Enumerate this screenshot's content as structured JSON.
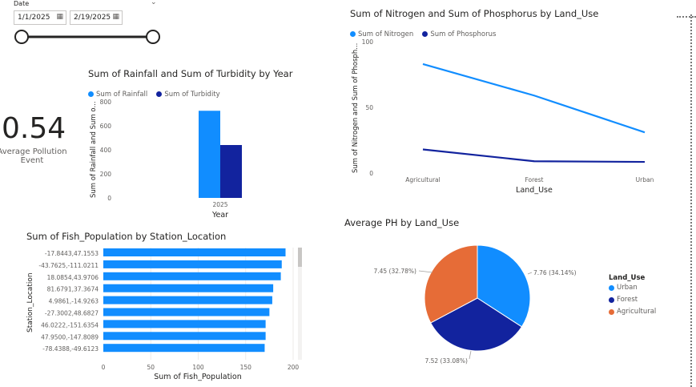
{
  "slicer": {
    "label": "Date",
    "start_date": "1/1/2025",
    "end_date": "2/19/2025"
  },
  "kpi": {
    "value": "0.54",
    "label_line1": "Average Pollution",
    "label_line2": "Event"
  },
  "rainfall_chart": {
    "title": "Sum of Rainfall and Sum of Turbidity by Year",
    "legend": [
      "Sum of Rainfall",
      "Sum of Turbidity"
    ],
    "ylabel": "Sum of Rainfall and Sum o...",
    "xlabel": "Year",
    "yticks": [
      "800",
      "600",
      "400",
      "200",
      "0"
    ],
    "category": "2025"
  },
  "nitrogen_chart": {
    "title": "Sum of Nitrogen and Sum of Phosphorus by Land_Use",
    "legend": [
      "Sum of Nitrogen",
      "Sum of Phosphorus"
    ],
    "ylabel": "Sum of Nitrogen and Sum of Phosph...",
    "xlabel": "Land_Use",
    "yticks": [
      "100",
      "50",
      "0"
    ],
    "categories": [
      "Agricultural",
      "Forest",
      "Urban"
    ]
  },
  "fish_chart": {
    "title": "Sum of Fish_Population by Station_Location",
    "ylabel": "Station_Location",
    "xlabel": "Sum of Fish_Population",
    "xticks": [
      "0",
      "50",
      "100",
      "150",
      "200"
    ]
  },
  "ph_chart": {
    "title": "Average PH by Land_Use",
    "legend_title": "Land_Use",
    "legend": [
      "Urban",
      "Forest",
      "Agricultural"
    ]
  },
  "colors": {
    "series1": "#118DFF",
    "series2": "#12239E",
    "series3": "#E66C37"
  },
  "chart_data": [
    {
      "type": "bar",
      "title": "Sum of Rainfall and Sum of Turbidity by Year",
      "categories": [
        "2025"
      ],
      "series": [
        {
          "name": "Sum of Rainfall",
          "values": [
            725
          ]
        },
        {
          "name": "Sum of Turbidity",
          "values": [
            440
          ]
        }
      ],
      "xlabel": "Year",
      "ylabel": "Sum of Rainfall and Sum o...",
      "ylim": [
        0,
        800
      ]
    },
    {
      "type": "line",
      "title": "Sum of Nitrogen and Sum of Phosphorus by Land_Use",
      "categories": [
        "Agricultural",
        "Forest",
        "Urban"
      ],
      "series": [
        {
          "name": "Sum of Nitrogen",
          "values": [
            83,
            59,
            31
          ]
        },
        {
          "name": "Sum of Phosphorus",
          "values": [
            18,
            9,
            8.5
          ]
        }
      ],
      "xlabel": "Land_Use",
      "ylabel": "Sum of Nitrogen and Sum of Phosph...",
      "ylim": [
        0,
        100
      ]
    },
    {
      "type": "bar",
      "orientation": "horizontal",
      "title": "Sum of Fish_Population by Station_Location",
      "categories": [
        "-17.8443,47.1553",
        "-43.7625,-111.0211",
        "18.0854,43.9706",
        "81.6791,37.3674",
        "4.9861,-14.9263",
        "-27.3002,48.6827",
        "46.0222,-151.6354",
        "47.9500,-147.8089",
        "-78.4388,-49.6123"
      ],
      "values": [
        192,
        188,
        187,
        179,
        178,
        175,
        171,
        171,
        170
      ],
      "xlabel": "Sum of Fish_Population",
      "ylabel": "Station_Location",
      "xlim": [
        0,
        200
      ]
    },
    {
      "type": "pie",
      "title": "Average PH by Land_Use",
      "categories": [
        "Urban",
        "Forest",
        "Agricultural"
      ],
      "values": [
        7.76,
        7.52,
        7.45
      ],
      "labels": [
        "7.76 (34.14%)",
        "7.52 (33.08%)",
        "7.45 (32.78%)"
      ]
    }
  ]
}
